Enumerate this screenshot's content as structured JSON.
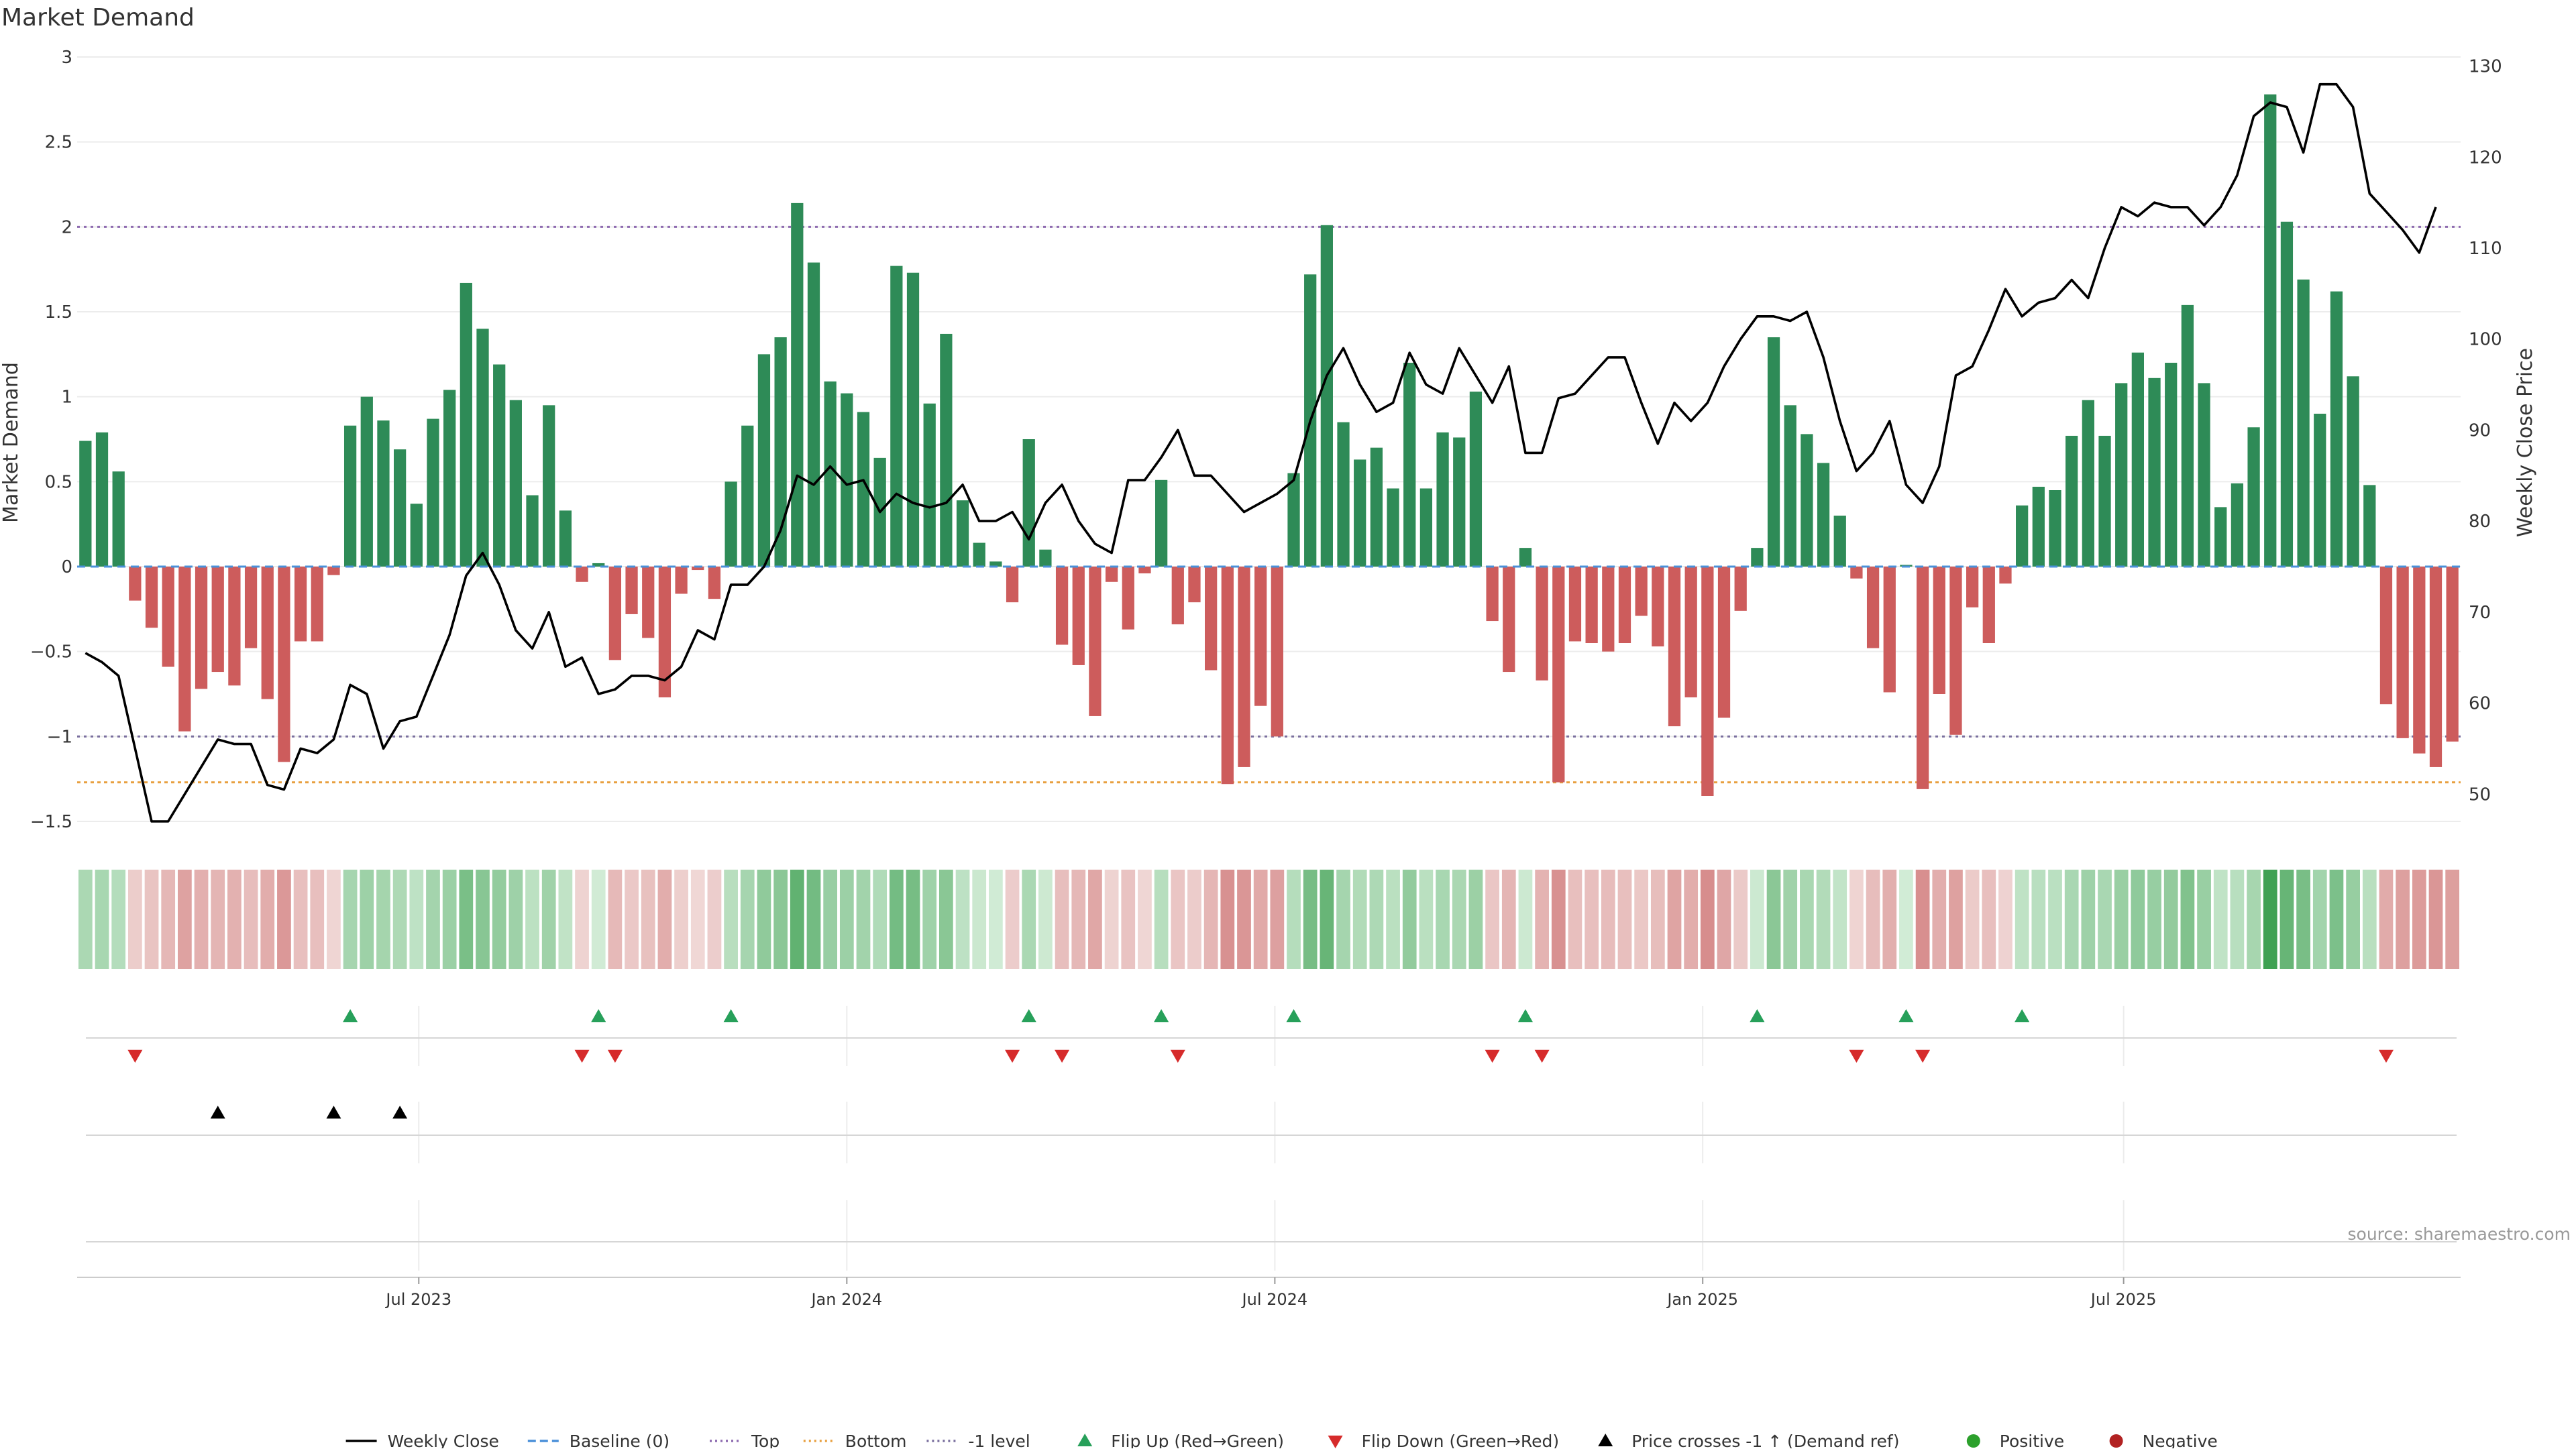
{
  "title": "Market Demand",
  "source": "source: sharemaestro.com",
  "chart_data": {
    "type": "bar",
    "title": "Market Demand",
    "ylabel": "Market Demand",
    "y2label": "Weekly Close Price",
    "ylim": [
      -1.5,
      3
    ],
    "y2lim": [
      47,
      131
    ],
    "yticks": [
      3,
      2.5,
      2,
      1.5,
      1,
      0.5,
      0,
      -0.5,
      -1,
      -1.5
    ],
    "ytick_labels": [
      "3",
      "2.5",
      "2",
      "1.5",
      "1",
      "0.5",
      "0",
      "−0.5",
      "−1",
      "−1.5"
    ],
    "y2ticks": [
      130,
      120,
      110,
      100,
      90,
      80,
      70,
      60,
      50
    ],
    "xtick_labels": [
      "Jul 2023",
      "Jan 2024",
      "Jul 2024",
      "Jan 2025",
      "Jul 2025"
    ],
    "xtick_index": [
      20.14,
      46.0,
      71.86,
      97.71,
      123.14
    ],
    "reference_lines": {
      "top": 2.0,
      "bottom": -1.27,
      "minus1_level": -1.0,
      "baseline": 0
    },
    "demand": [
      0.74,
      0.79,
      0.56,
      -0.2,
      -0.36,
      -0.59,
      -0.97,
      -0.72,
      -0.62,
      -0.7,
      -0.48,
      -0.78,
      -1.15,
      -0.44,
      -0.44,
      -0.05,
      0.83,
      1.0,
      0.86,
      0.69,
      0.37,
      0.87,
      1.04,
      1.67,
      1.4,
      1.19,
      0.98,
      0.42,
      0.95,
      0.33,
      -0.09,
      0.02,
      -0.55,
      -0.28,
      -0.42,
      -0.77,
      -0.16,
      -0.02,
      -0.19,
      0.5,
      0.83,
      1.25,
      1.35,
      2.14,
      1.79,
      1.09,
      1.02,
      0.91,
      0.64,
      1.77,
      1.73,
      0.96,
      1.37,
      0.39,
      0.14,
      0.03,
      -0.21,
      0.75,
      0.1,
      -0.46,
      -0.58,
      -0.88,
      -0.09,
      -0.37,
      -0.04,
      0.51,
      -0.34,
      -0.21,
      -0.61,
      -1.28,
      -1.18,
      -0.82,
      -1.0,
      0.55,
      1.72,
      2.01,
      0.85,
      0.63,
      0.7,
      0.46,
      1.2,
      0.46,
      0.79,
      0.76,
      1.03,
      -0.32,
      -0.62,
      0.11,
      -0.67,
      -1.27,
      -0.44,
      -0.45,
      -0.5,
      -0.45,
      -0.29,
      -0.47,
      -0.94,
      -0.77,
      -1.35,
      -0.89,
      -0.26,
      0.11,
      1.35,
      0.95,
      0.78,
      0.61,
      0.3,
      -0.07,
      -0.48,
      -0.74,
      0.01,
      -1.31,
      -0.75,
      -0.99,
      -0.24,
      -0.45,
      -0.1,
      0.36,
      0.47,
      0.45,
      0.77,
      0.98,
      0.77,
      1.08,
      1.26,
      1.11,
      1.2,
      1.54,
      1.08,
      0.35,
      0.49,
      0.82,
      2.78,
      2.03,
      1.69,
      0.9,
      1.62,
      1.12,
      0.48,
      -0.81,
      -1.01,
      -1.1,
      -1.18,
      -1.03
    ],
    "close_price": [
      65.5,
      64.5,
      63,
      55,
      47,
      47,
      50,
      53,
      56,
      55.5,
      55.5,
      51,
      50.5,
      55,
      54.5,
      56,
      62,
      61,
      55,
      58,
      58.5,
      63,
      67.5,
      74,
      76.5,
      73,
      68,
      66,
      70,
      64,
      65,
      61,
      61.5,
      63,
      63,
      62.5,
      64,
      68,
      67,
      73,
      73,
      75,
      79,
      85,
      84,
      86,
      84,
      84.5,
      81,
      83,
      82,
      81.5,
      82,
      84,
      80,
      80,
      81,
      78,
      82,
      84,
      80,
      77.5,
      76.5,
      84.5,
      84.5,
      87,
      90,
      85,
      85,
      83,
      81,
      82,
      83,
      84.5,
      91,
      96,
      99,
      95,
      92,
      93,
      98.5,
      95,
      94,
      99,
      96,
      93,
      97,
      87.5,
      87.5,
      93.5,
      94,
      96,
      98,
      98,
      93,
      88.5,
      93,
      91,
      93,
      97,
      100,
      102.5,
      102.5,
      102,
      103,
      98,
      91,
      85.5,
      87.5,
      91,
      84,
      82,
      86,
      96,
      97,
      101,
      105.5,
      102.5,
      104,
      104.5,
      106.5,
      104.5,
      110,
      114.5,
      113.5,
      115,
      114.5,
      114.5,
      112.5,
      114.5,
      118,
      124.5,
      126,
      125.5,
      120.5,
      128,
      128,
      125.5,
      116,
      114,
      112,
      109.5,
      114.5
    ],
    "flip_up_index": [
      16,
      31,
      39,
      57,
      65,
      73,
      87,
      101,
      110,
      117
    ],
    "flip_down_index": [
      3,
      30,
      32,
      56,
      59,
      66,
      85,
      88,
      107,
      111,
      139
    ],
    "price_cross_index": [
      8,
      15,
      19
    ],
    "legend": [
      {
        "label": "Weekly Close",
        "marker": "line-solid",
        "color": "#000000"
      },
      {
        "label": "Baseline (0)",
        "marker": "line-dashed",
        "color": "#4a90d9"
      },
      {
        "label": "Top",
        "marker": "line-dotted",
        "color": "#8e6bb0"
      },
      {
        "label": "Bottom",
        "marker": "line-dotted",
        "color": "#e8a040"
      },
      {
        "label": "-1 level",
        "marker": "line-dotted",
        "color": "#7a6f9e"
      },
      {
        "label": "Flip Up (Red→Green)",
        "marker": "triangle-up",
        "color": "#27a05a"
      },
      {
        "label": "Flip Down (Green→Red)",
        "marker": "triangle-down",
        "color": "#d62b2b"
      },
      {
        "label": "Price crosses -1 ↑ (Demand ref)",
        "marker": "triangle-up",
        "color": "#000000"
      },
      {
        "label": "Positive",
        "marker": "dot",
        "color": "#2ca02c"
      },
      {
        "label": "Negative",
        "marker": "dot",
        "color": "#b22222"
      }
    ],
    "legend_position": "bottom-center"
  },
  "colors": {
    "positive_bar": "#2e8b57",
    "negative_bar": "#cd5c5c",
    "price_line": "#000000",
    "grid": "#ececec",
    "flip_up": "#27a05a",
    "flip_down": "#d62b2b",
    "cross": "#000000"
  }
}
